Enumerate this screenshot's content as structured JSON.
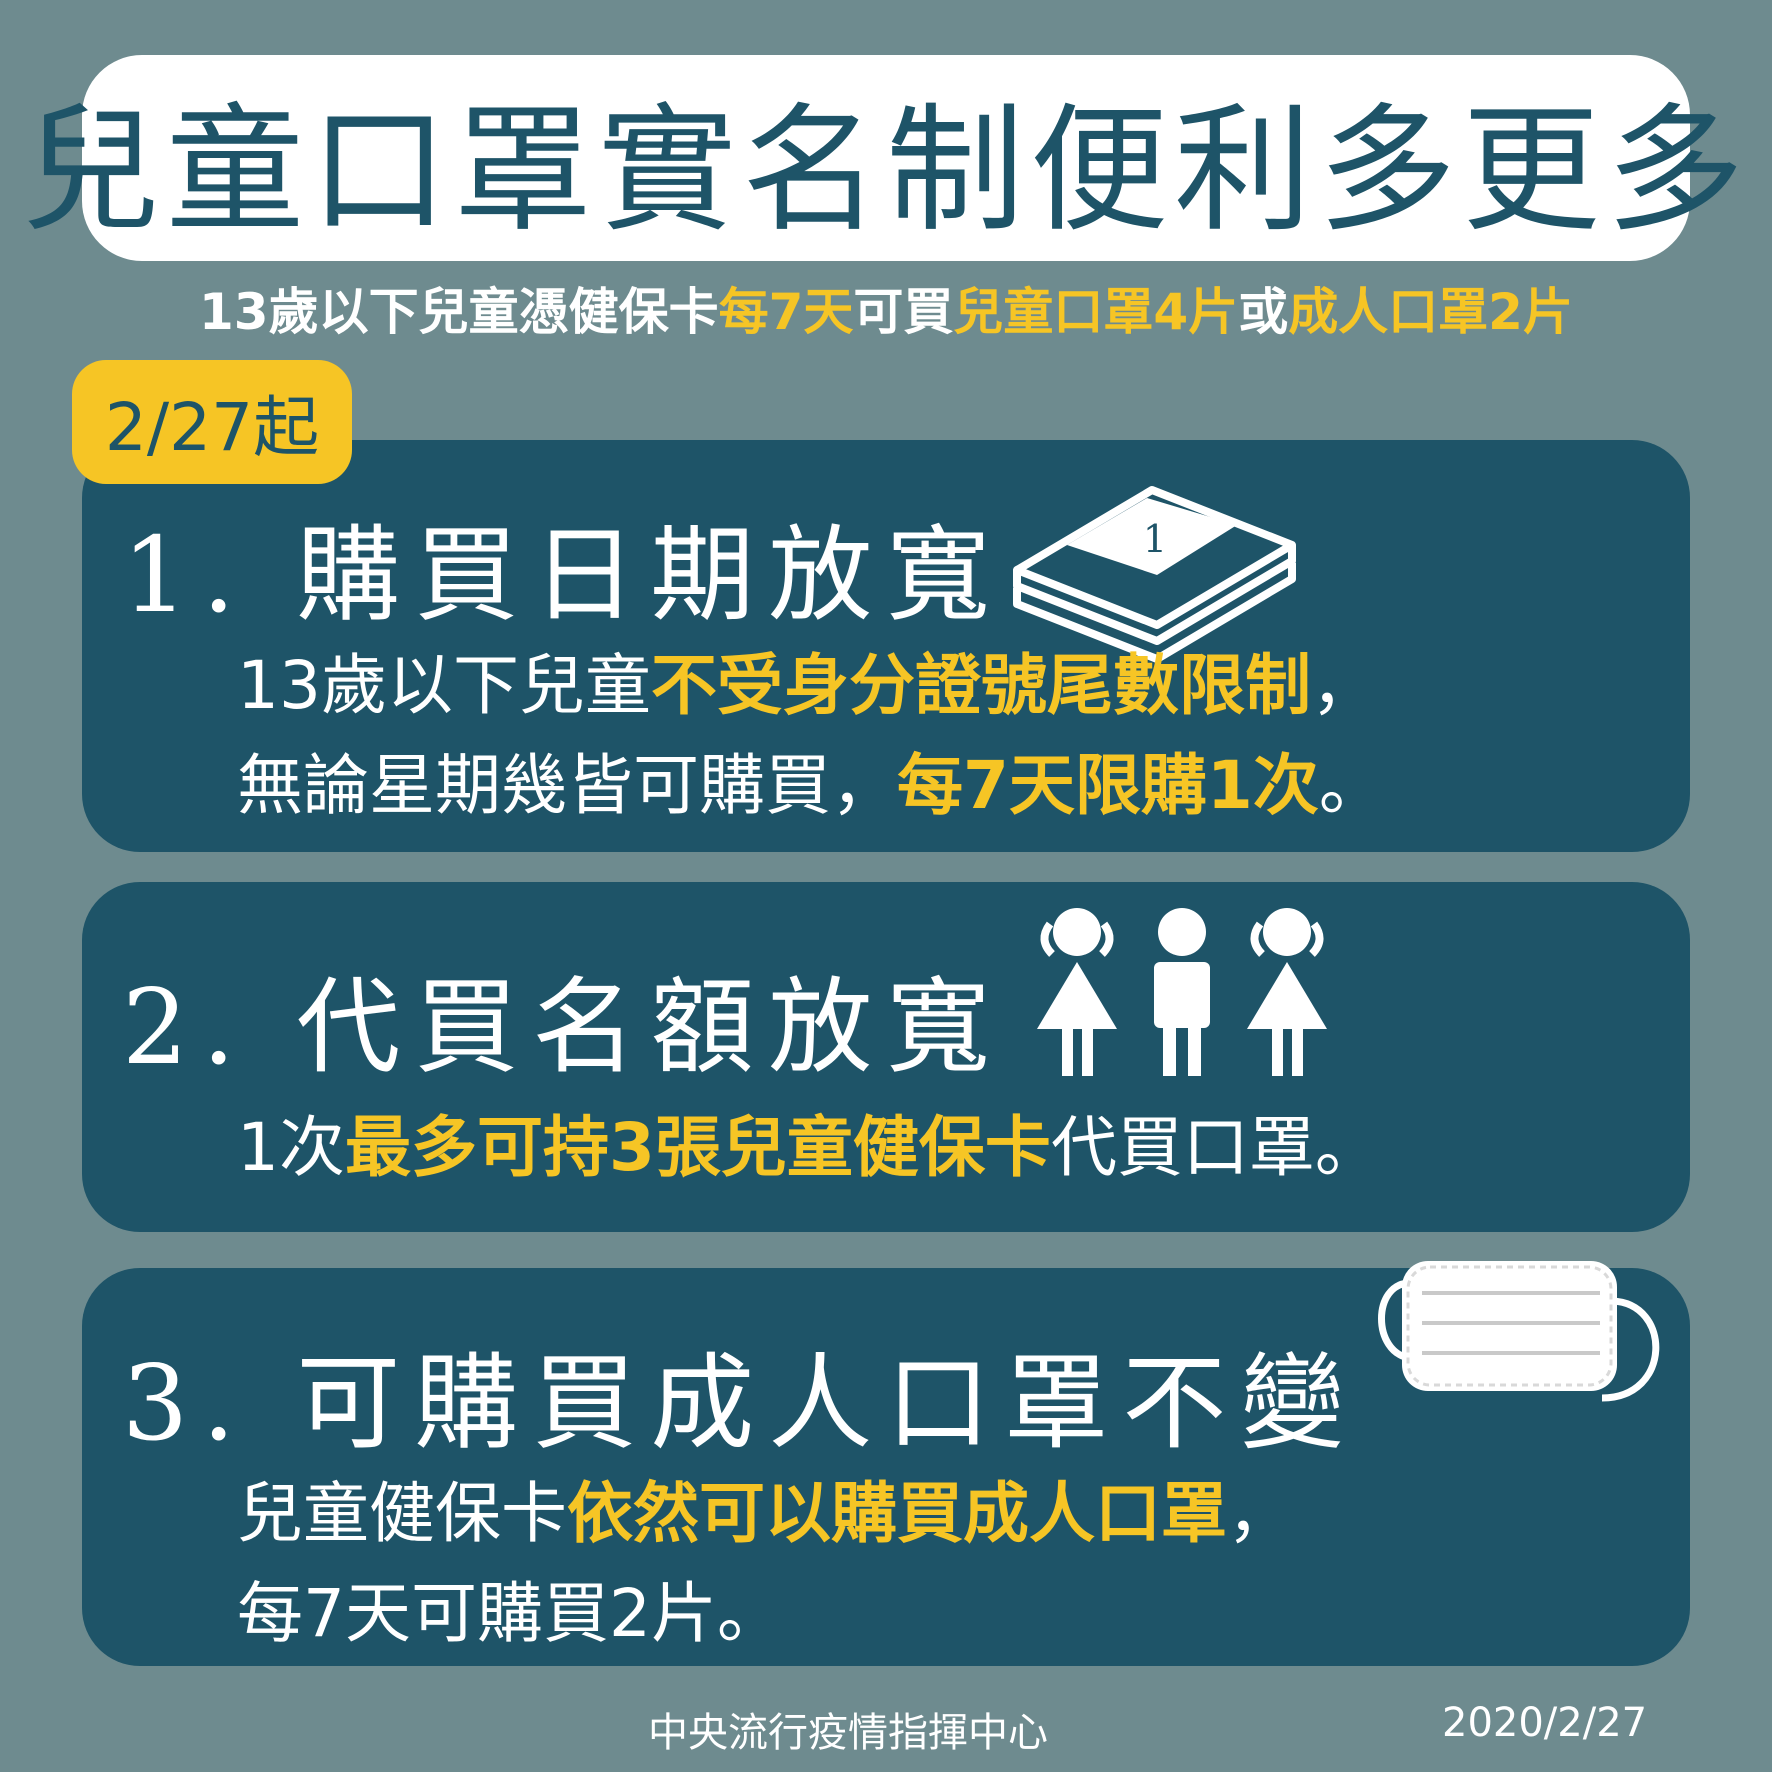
{
  "title": "兒童口罩實名制便利多更多",
  "subtitle": {
    "p1": "13歲以下兒童憑健保卡",
    "h1": "每7天",
    "p2": "可買",
    "h2": "兒童口罩4片",
    "p3": "或",
    "h3": "成人口罩2片"
  },
  "badge": "2/27起",
  "items": [
    {
      "heading": "1. 購買日期放寬",
      "icon": "calendar-icon",
      "calendar_number": "1",
      "line1_a": "13歲以下兒童",
      "line1_b": "不受身分證號尾數限制",
      "line1_c": "，",
      "line2_a": "無論星期幾皆可購買，",
      "line2_b": "每7天限購1次",
      "line2_c": "。"
    },
    {
      "heading": "2. 代買名額放寬",
      "icon": "three-children-icon",
      "line1_a": "1次",
      "line1_b": "最多可持3張兒童健保卡",
      "line1_c": "代買口罩。"
    },
    {
      "heading": "3. 可購買成人口罩不變",
      "icon": "face-mask-icon",
      "line1_a": "兒童健保卡",
      "line1_b": "依然可以購買成人口罩",
      "line1_c": "，",
      "line2_a": "每7天可購買2片。"
    }
  ],
  "footer": {
    "organization": "中央流行疫情指揮中心",
    "date": "2020/2/27"
  },
  "colors": {
    "background": "#6e8b8f",
    "panel": "#1e5468",
    "accent": "#f6c525",
    "text": "#ffffff"
  }
}
